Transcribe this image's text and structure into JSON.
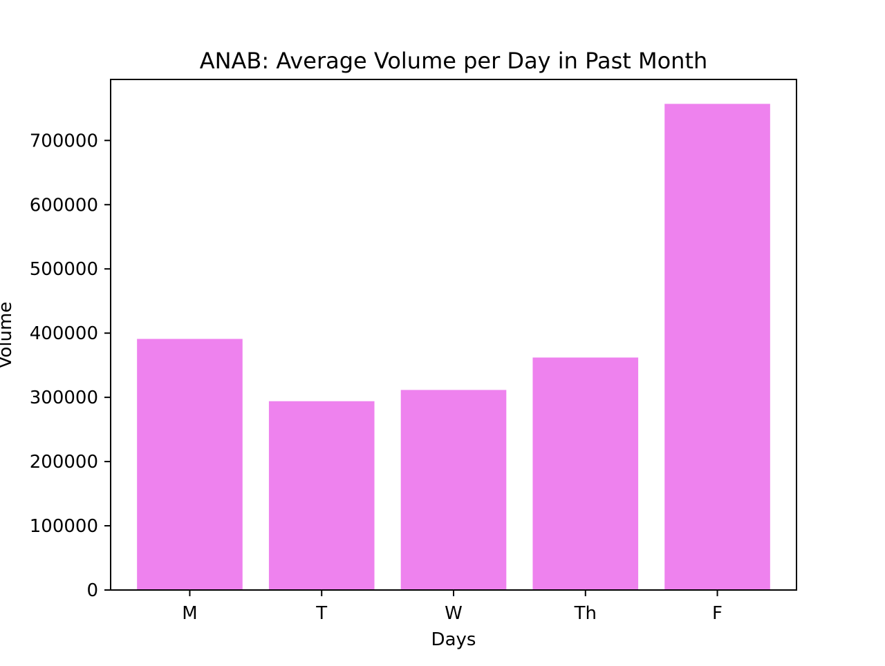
{
  "chart_data": {
    "type": "bar",
    "title": "ANAB: Average Volume per Day in Past Month",
    "xlabel": "Days",
    "ylabel": "Volume",
    "categories": [
      "M",
      "T",
      "W",
      "Th",
      "F"
    ],
    "values": [
      391000,
      294000,
      311500,
      362000,
      757000
    ],
    "ylim": [
      0,
      795000
    ],
    "yticks": [
      0,
      100000,
      200000,
      300000,
      400000,
      500000,
      600000,
      700000
    ],
    "ytick_labels": [
      "0",
      "100000",
      "200000",
      "300000",
      "400000",
      "500000",
      "600000",
      "700000"
    ],
    "bar_color": "#ee82ee",
    "grid": false,
    "legend": false
  }
}
